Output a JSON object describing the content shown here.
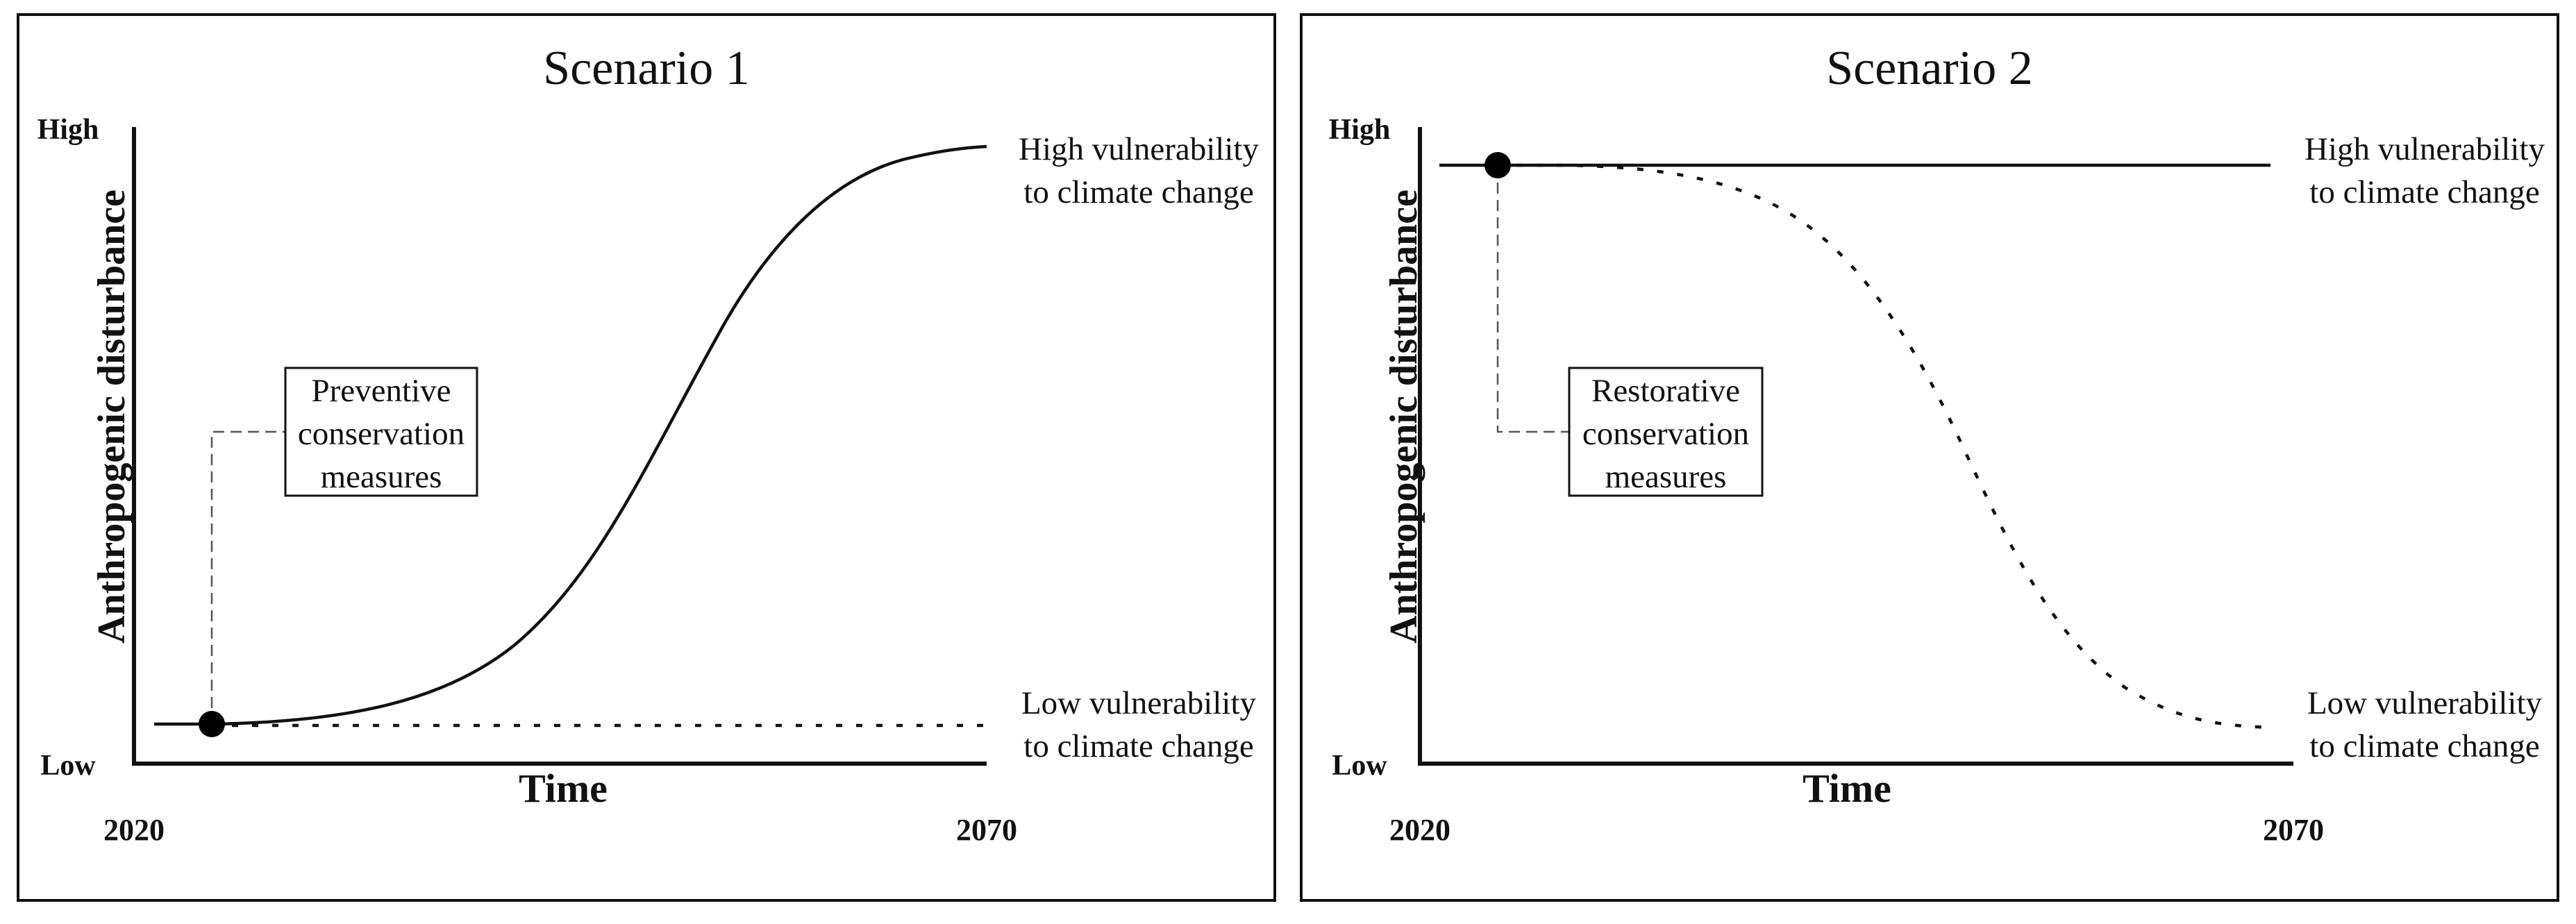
{
  "panels": [
    {
      "title": "Scenario 1",
      "y_axis_label": "Anthropogenic disturbance",
      "y_high_label": "High",
      "y_low_label": "Low",
      "x_axis_label": "Time",
      "x_start_label": "2020",
      "x_end_label": "2070",
      "high_end_label": [
        "High vulnerability",
        "to climate change"
      ],
      "low_end_label": [
        "Low vulnerability",
        "to climate change"
      ],
      "intervention_label": [
        "Preventive",
        "conservation",
        "measures"
      ],
      "trajectories": [
        {
          "style": "solid",
          "path": "increasing from low to high",
          "points": [
            [
              0.0,
              0.07
            ],
            [
              0.14,
              0.08
            ],
            [
              0.33,
              0.19
            ],
            [
              0.5,
              0.5
            ],
            [
              0.67,
              0.85
            ],
            [
              0.78,
              0.91
            ],
            [
              1.0,
              0.93
            ]
          ]
        },
        {
          "style": "dotted",
          "path": "stays low",
          "points": [
            [
              0.0,
              0.07
            ],
            [
              1.0,
              0.07
            ]
          ]
        }
      ],
      "intervention_point": [
        0.09,
        0.07
      ]
    },
    {
      "title": "Scenario 2",
      "y_axis_label": "Anthropogenic disturbance",
      "y_high_label": "High",
      "y_low_label": "Low",
      "x_axis_label": "Time",
      "x_start_label": "2020",
      "x_end_label": "2070",
      "high_end_label": [
        "High vulnerability",
        "to climate change"
      ],
      "low_end_label": [
        "Low vulnerability",
        "to climate change"
      ],
      "intervention_label": [
        "Restorative",
        "conservation",
        "measures"
      ],
      "trajectories": [
        {
          "style": "solid",
          "path": "stays high",
          "points": [
            [
              0.0,
              0.94
            ],
            [
              1.0,
              0.94
            ]
          ]
        },
        {
          "style": "dotted",
          "path": "decreasing from high to low",
          "points": [
            [
              0.0,
              0.94
            ],
            [
              0.14,
              0.94
            ],
            [
              0.33,
              0.84
            ],
            [
              0.5,
              0.52
            ],
            [
              0.67,
              0.2
            ],
            [
              0.81,
              0.08
            ],
            [
              1.0,
              0.06
            ]
          ]
        }
      ],
      "intervention_point": [
        0.09,
        0.94
      ]
    }
  ]
}
